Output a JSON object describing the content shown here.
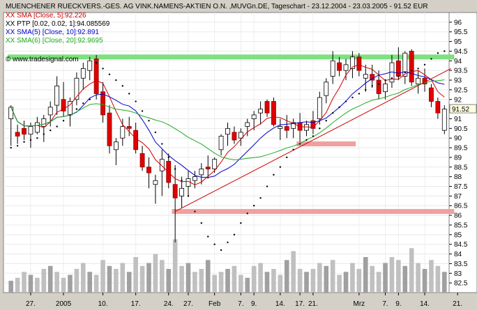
{
  "chart_data": {
    "type": "candlestick",
    "title": "MUENCHENER RUECKVERS.-GES. AG VINK.NAMENS-AKTIEN O.N. ,MUVGn.DE, Tageschart - 23.12.2004 - 23.03.2005 - 91.52 EUR",
    "source": "© www.tradesignal.com",
    "last_price_label": "91.52",
    "legend": [
      {
        "text": "XX SMA [Close, 5]:92.226",
        "color": "#cc0000"
      },
      {
        "text": "XX PTP [0.02, 0.02, 1]:94.085569",
        "color": "#000000"
      },
      {
        "text": "XX SMA(5) [Close, 10]:92.891",
        "color": "#0000cc"
      },
      {
        "text": "XX SMA(6) [Close, 20]:92.9695",
        "color": "#22aa22"
      }
    ],
    "ylim": [
      82,
      96.5
    ],
    "y_ticks": [
      "82.5",
      "83",
      "83.5",
      "84",
      "84.5",
      "85",
      "85.5",
      "86",
      "86.5",
      "87",
      "87.5",
      "88",
      "88.5",
      "89",
      "89.5",
      "90",
      "90.5",
      "91",
      "91.5",
      "92",
      "92.5",
      "93",
      "93.5",
      "94",
      "94.5",
      "95",
      "95.5",
      "96"
    ],
    "y_tick_values": [
      82.5,
      83,
      83.5,
      84,
      84.5,
      85,
      85.5,
      86,
      86.5,
      87,
      87.5,
      88,
      88.5,
      89,
      89.5,
      90,
      90.5,
      91,
      91.5,
      92,
      92.5,
      93,
      93.5,
      94,
      94.5,
      95,
      95.5,
      96
    ],
    "x_ticks": [
      {
        "label": "27.",
        "i": 3
      },
      {
        "label": "2005",
        "i": 8
      },
      {
        "label": "10.",
        "i": 14
      },
      {
        "label": "17.",
        "i": 19
      },
      {
        "label": "24.",
        "i": 24
      },
      {
        "label": "27.",
        "i": 27
      },
      {
        "label": "Feb",
        "i": 31
      },
      {
        "label": "7.",
        "i": 35
      },
      {
        "label": "9.",
        "i": 37
      },
      {
        "label": "14.",
        "i": 41
      },
      {
        "label": "17.",
        "i": 44
      },
      {
        "label": "21.",
        "i": 46
      },
      {
        "label": "Mrz",
        "i": 53
      },
      {
        "label": "7.",
        "i": 57
      },
      {
        "label": "9.",
        "i": 59
      },
      {
        "label": "14.",
        "i": 63
      },
      {
        "label": "21.",
        "i": 68
      }
    ],
    "candles": [
      {
        "o": 91,
        "h": 91.7,
        "l": 89.6,
        "c": 91.6
      },
      {
        "o": 90.3,
        "h": 90.7,
        "l": 89.7,
        "c": 90.1
      },
      {
        "o": 90.5,
        "h": 90.9,
        "l": 89.9,
        "c": 90.2
      },
      {
        "o": 90.2,
        "h": 90.8,
        "l": 89.5,
        "c": 90.6
      },
      {
        "o": 90.3,
        "h": 91.1,
        "l": 90.2,
        "c": 90.8
      },
      {
        "o": 90.6,
        "h": 91.2,
        "l": 89.8,
        "c": 91.0
      },
      {
        "o": 91.2,
        "h": 91.9,
        "l": 90.6,
        "c": 91.6
      },
      {
        "o": 91.7,
        "h": 93.2,
        "l": 91.2,
        "c": 92.7
      },
      {
        "o": 92,
        "h": 92.9,
        "l": 91.1,
        "c": 91.4
      },
      {
        "o": 91.2,
        "h": 92.1,
        "l": 90.6,
        "c": 91.9
      },
      {
        "o": 92,
        "h": 93.4,
        "l": 91.7,
        "c": 93.1
      },
      {
        "o": 93.1,
        "h": 93.9,
        "l": 92.5,
        "c": 93.6
      },
      {
        "o": 93.5,
        "h": 94.2,
        "l": 93.0,
        "c": 94.0
      },
      {
        "o": 94.1,
        "h": 94.3,
        "l": 92.0,
        "c": 92.3
      },
      {
        "o": 92.4,
        "h": 92.9,
        "l": 90.8,
        "c": 91.2
      },
      {
        "o": 91.3,
        "h": 91.7,
        "l": 89.2,
        "c": 89.6
      },
      {
        "o": 89.4,
        "h": 90.0,
        "l": 88.6,
        "c": 89.8
      },
      {
        "o": 90.0,
        "h": 91.0,
        "l": 89.6,
        "c": 90.6
      },
      {
        "o": 90.6,
        "h": 91.1,
        "l": 90.1,
        "c": 90.5
      },
      {
        "o": 90.4,
        "h": 90.8,
        "l": 89.2,
        "c": 89.4
      },
      {
        "o": 89.2,
        "h": 89.6,
        "l": 88.3,
        "c": 88.5
      },
      {
        "o": 88.5,
        "h": 89.0,
        "l": 87.4,
        "c": 88.2
      },
      {
        "o": 87.6,
        "h": 88.1,
        "l": 86.6,
        "c": 87.8
      },
      {
        "o": 88.3,
        "h": 89.4,
        "l": 87.0,
        "c": 88.9
      },
      {
        "o": 88.8,
        "h": 89.2,
        "l": 87.4,
        "c": 87.7
      },
      {
        "o": 87.6,
        "h": 88.6,
        "l": 84.6,
        "c": 86.9
      },
      {
        "o": 87.0,
        "h": 88.0,
        "l": 86.4,
        "c": 87.4
      },
      {
        "o": 87.5,
        "h": 88.3,
        "l": 87.0,
        "c": 87.9
      },
      {
        "o": 87.8,
        "h": 88.3,
        "l": 87.4,
        "c": 88.0
      },
      {
        "o": 88.1,
        "h": 88.7,
        "l": 87.6,
        "c": 88.4
      },
      {
        "o": 88.5,
        "h": 89.1,
        "l": 87.9,
        "c": 88.4
      },
      {
        "o": 88.4,
        "h": 89.0,
        "l": 88.2,
        "c": 88.9
      },
      {
        "o": 89.4,
        "h": 90.2,
        "l": 89.1,
        "c": 90.1
      },
      {
        "o": 90.2,
        "h": 90.8,
        "l": 89.6,
        "c": 90.5
      },
      {
        "o": 90.3,
        "h": 90.6,
        "l": 89.7,
        "c": 89.9
      },
      {
        "o": 90.0,
        "h": 90.5,
        "l": 89.6,
        "c": 90.3
      },
      {
        "o": 90.6,
        "h": 91.0,
        "l": 90.1,
        "c": 90.8
      },
      {
        "o": 91.0,
        "h": 91.4,
        "l": 90.4,
        "c": 91.2
      },
      {
        "o": 91.3,
        "h": 91.9,
        "l": 90.7,
        "c": 91.5
      },
      {
        "o": 91.9,
        "h": 92.0,
        "l": 91.1,
        "c": 91.3
      },
      {
        "o": 91.9,
        "h": 92.1,
        "l": 90.6,
        "c": 90.7
      },
      {
        "o": 90.5,
        "h": 91.0,
        "l": 89.9,
        "c": 90.6
      },
      {
        "o": 90.6,
        "h": 91.2,
        "l": 90.0,
        "c": 90.4
      },
      {
        "o": 90.5,
        "h": 91.0,
        "l": 90.0,
        "c": 90.8
      },
      {
        "o": 90.8,
        "h": 91.3,
        "l": 89.8,
        "c": 90.4
      },
      {
        "o": 90.4,
        "h": 90.9,
        "l": 90.1,
        "c": 90.7
      },
      {
        "o": 90.9,
        "h": 91.4,
        "l": 90.2,
        "c": 90.5
      },
      {
        "o": 91.0,
        "h": 92.4,
        "l": 90.7,
        "c": 92.1
      },
      {
        "o": 92.2,
        "h": 93.1,
        "l": 91.8,
        "c": 92.9
      },
      {
        "o": 93.2,
        "h": 94.5,
        "l": 92.8,
        "c": 94.0
      },
      {
        "o": 93.9,
        "h": 94.2,
        "l": 93.2,
        "c": 93.5
      },
      {
        "o": 93.5,
        "h": 94.1,
        "l": 93.0,
        "c": 93.8
      },
      {
        "o": 93.6,
        "h": 94.5,
        "l": 93.1,
        "c": 94.2
      },
      {
        "o": 94.2,
        "h": 94.4,
        "l": 93.2,
        "c": 93.5
      },
      {
        "o": 93.1,
        "h": 93.8,
        "l": 92.4,
        "c": 93.3
      },
      {
        "o": 93.3,
        "h": 93.8,
        "l": 92.6,
        "c": 93.0
      },
      {
        "o": 93.0,
        "h": 93.5,
        "l": 92.0,
        "c": 92.3
      },
      {
        "o": 92.4,
        "h": 93.0,
        "l": 92.0,
        "c": 92.8
      },
      {
        "o": 92.9,
        "h": 94.3,
        "l": 92.6,
        "c": 93.9
      },
      {
        "o": 94.0,
        "h": 94.7,
        "l": 93.0,
        "c": 93.2
      },
      {
        "o": 93.2,
        "h": 94.5,
        "l": 92.8,
        "c": 94.4
      },
      {
        "o": 94.5,
        "h": 94.6,
        "l": 92.7,
        "c": 92.9
      },
      {
        "o": 92.8,
        "h": 93.5,
        "l": 92.3,
        "c": 93.1
      },
      {
        "o": 93.1,
        "h": 93.6,
        "l": 92.4,
        "c": 92.8
      },
      {
        "o": 92.6,
        "h": 92.8,
        "l": 91.6,
        "c": 91.9
      },
      {
        "o": 91.9,
        "h": 92.1,
        "l": 91.0,
        "c": 91.3
      },
      {
        "o": 90.4,
        "h": 91.7,
        "l": 90.2,
        "c": 91.5
      }
    ],
    "sar": [
      89.5,
      89.6,
      89.8,
      89.9,
      90.0,
      90.2,
      90.4,
      90.6,
      90.9,
      91.2,
      91.5,
      91.8,
      92.0,
      93.9,
      93.6,
      93.3,
      93.0,
      92.7,
      92.3,
      91.9,
      91.4,
      90.9,
      90.3,
      89.7,
      89.0,
      88.4,
      87.8,
      87.0,
      86.2,
      85.6,
      84.9,
      84.5,
      84.2,
      84.6,
      85.0,
      85.6,
      86.1,
      86.5,
      86.9,
      87.5,
      88.1,
      88.5,
      89.0,
      89.4,
      89.7,
      89.9,
      90.1,
      90.5,
      90.9,
      91.3,
      91.6,
      91.9,
      92.1,
      92.3,
      92.5,
      92.7,
      92.8,
      93.0,
      93.1,
      93.2,
      93.4,
      93.5,
      93.6,
      93.8,
      94.1,
      94.4,
      94.5
    ],
    "support_bands": [
      {
        "y": 94.2,
        "x0": 0,
        "x1": 67,
        "color": "#7ee07e"
      },
      {
        "y": 89.7,
        "x0": 44,
        "x1": 52,
        "color": "#f0a0a0"
      },
      {
        "y": 86.2,
        "x0": 25,
        "x1": 67,
        "color": "#f0a0a0"
      }
    ],
    "trendline": {
      "i0": 25,
      "y0": 86.2,
      "i1": 67,
      "y1": 93.6,
      "color": "#cc0000"
    },
    "volumes": [
      0.2,
      0.25,
      0.35,
      0.3,
      0.25,
      0.4,
      0.45,
      0.35,
      0.25,
      0.3,
      0.4,
      0.5,
      0.35,
      0.3,
      0.55,
      0.45,
      0.4,
      0.5,
      0.35,
      0.6,
      0.45,
      0.5,
      0.65,
      0.55,
      0.4,
      0.9,
      0.45,
      0.5,
      0.35,
      0.4,
      0.55,
      0.3,
      0.35,
      0.4,
      0.45,
      0.3,
      0.25,
      0.45,
      0.5,
      0.35,
      0.4,
      0.3,
      0.55,
      0.7,
      0.4,
      0.35,
      0.4,
      0.5,
      0.45,
      0.55,
      0.3,
      0.35,
      0.5,
      0.4,
      0.6,
      0.45,
      0.35,
      0.5,
      0.6,
      0.55,
      0.45,
      0.75,
      0.5,
      0.4,
      0.55,
      0.45,
      0.35
    ]
  }
}
